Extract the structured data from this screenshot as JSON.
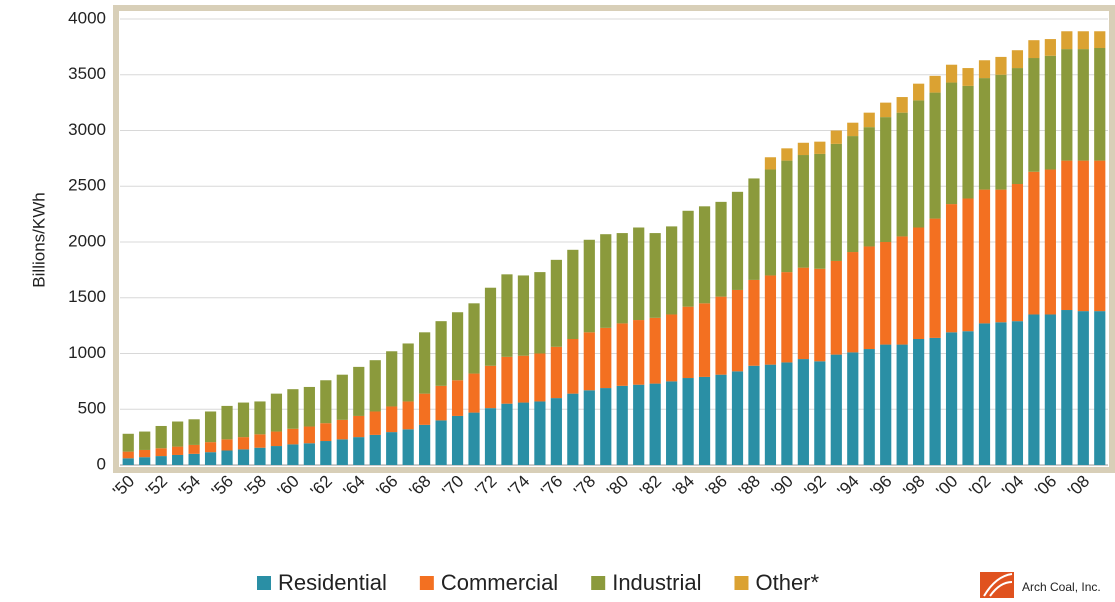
{
  "chart_data": {
    "type": "stacked_bar",
    "y_label": "Billions/KWh",
    "categories": [
      "'50",
      null,
      "'52",
      null,
      "'54",
      null,
      "'56",
      null,
      "'58",
      null,
      "'60",
      null,
      "'62",
      null,
      "'64",
      null,
      "'66",
      null,
      "'68",
      null,
      "'70",
      null,
      "'72",
      null,
      "'74",
      null,
      "'76",
      null,
      "'78",
      null,
      "'80",
      null,
      "'82",
      null,
      "'84",
      null,
      "'86",
      null,
      "'88",
      null,
      "'90",
      null,
      "'92",
      null,
      "'94",
      null,
      "'96",
      null,
      "'98",
      null,
      "'00",
      null,
      "'02",
      null,
      "'04",
      null,
      "'06",
      null,
      "'08",
      null
    ],
    "series": [
      {
        "name": "Residential",
        "color": "#2a8fa5",
        "values": [
          60,
          70,
          80,
          90,
          100,
          115,
          130,
          140,
          155,
          170,
          185,
          195,
          215,
          230,
          250,
          270,
          295,
          320,
          360,
          400,
          440,
          470,
          510,
          550,
          560,
          570,
          600,
          640,
          670,
          690,
          710,
          720,
          730,
          750,
          780,
          790,
          810,
          840,
          890,
          900,
          920,
          950,
          930,
          990,
          1010,
          1040,
          1080,
          1080,
          1130,
          1140,
          1190,
          1200,
          1270,
          1280,
          1290,
          1350,
          1350,
          1390,
          1380,
          1380
        ]
      },
      {
        "name": "Commercial",
        "color": "#f37021",
        "values": [
          60,
          65,
          70,
          75,
          80,
          90,
          100,
          110,
          120,
          130,
          140,
          150,
          160,
          175,
          190,
          210,
          230,
          250,
          280,
          310,
          320,
          350,
          380,
          420,
          420,
          430,
          460,
          490,
          520,
          540,
          560,
          580,
          590,
          600,
          640,
          660,
          700,
          730,
          770,
          800,
          810,
          820,
          830,
          840,
          900,
          920,
          920,
          970,
          1000,
          1070,
          1150,
          1190,
          1200,
          1190,
          1230,
          1280,
          1300,
          1340,
          1350,
          1350
        ]
      },
      {
        "name": "Industrial",
        "color": "#8b9a3c",
        "values": [
          160,
          165,
          200,
          225,
          230,
          275,
          300,
          310,
          295,
          340,
          355,
          355,
          385,
          405,
          440,
          460,
          495,
          520,
          550,
          580,
          610,
          630,
          700,
          740,
          720,
          730,
          780,
          800,
          830,
          840,
          810,
          830,
          760,
          790,
          860,
          870,
          850,
          880,
          910,
          950,
          1000,
          1010,
          1030,
          1050,
          1040,
          1070,
          1120,
          1110,
          1140,
          1130,
          1090,
          1010,
          1000,
          1030,
          1040,
          1020,
          1020,
          1000,
          1000,
          1010
        ]
      },
      {
        "name": "Other*",
        "color": "#dba232",
        "values": [
          null,
          null,
          null,
          null,
          null,
          null,
          null,
          null,
          null,
          null,
          null,
          null,
          null,
          null,
          null,
          null,
          null,
          null,
          null,
          null,
          null,
          null,
          null,
          null,
          null,
          null,
          null,
          null,
          null,
          null,
          null,
          null,
          null,
          null,
          null,
          null,
          null,
          null,
          null,
          110,
          110,
          110,
          110,
          120,
          120,
          130,
          130,
          140,
          150,
          150,
          160,
          160,
          160,
          160,
          160,
          160,
          150,
          160,
          160,
          150
        ]
      }
    ],
    "ylim": [
      0,
      4000
    ],
    "yticks": [
      0,
      500,
      1000,
      1500,
      2000,
      2500,
      3000,
      3500,
      4000
    ],
    "grid": true,
    "source": "Arch Coal, Inc."
  }
}
